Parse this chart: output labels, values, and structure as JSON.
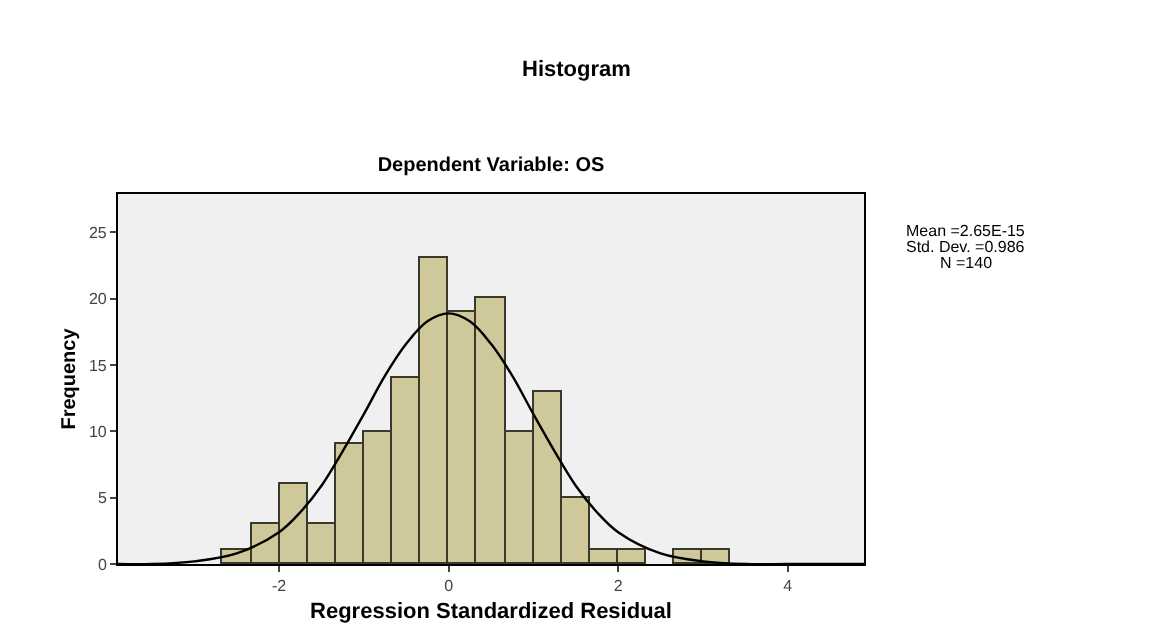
{
  "chart_data": {
    "type": "histogram",
    "title": "Histogram",
    "subtitle": "Dependent Variable: OS",
    "xlabel": "Regression Standardized Residual",
    "ylabel": "Frequency",
    "bins": [
      -2.67,
      -2.33,
      -2,
      -1.67,
      -1.33,
      -1,
      -0.67,
      -0.33,
      0,
      0.33,
      0.67,
      1,
      1.33,
      1.67,
      2,
      2.33,
      2.67,
      3,
      3.33
    ],
    "values": [
      1,
      3,
      6,
      3,
      9,
      10,
      14,
      23,
      19,
      20,
      10,
      13,
      5,
      1,
      1,
      0,
      1,
      1
    ],
    "color": "#cfc89a",
    "series": [
      {
        "type": "line",
        "color": "#000000",
        "x": [
          -3.9,
          -3.5,
          -3,
          -2.5,
          -2,
          -1.75,
          -1.5,
          -1.25,
          -1,
          -0.75,
          -0.5,
          -0.25,
          0,
          0.25,
          0.5,
          0.75,
          1,
          1.25,
          1.5,
          1.75,
          2,
          2.5,
          3,
          3.5,
          4,
          4.5,
          4.9
        ],
        "values": [
          0,
          0,
          0.2,
          0.8,
          2.4,
          3.9,
          5.9,
          8.5,
          11.3,
          14.2,
          16.6,
          18.3,
          18.9,
          18.3,
          16.6,
          14.2,
          11.3,
          8.5,
          5.9,
          3.9,
          2.4,
          0.8,
          0.2,
          0,
          0,
          0,
          0
        ]
      }
    ],
    "xlim": [
      -3.9,
      4.9
    ],
    "ylim": [
      0,
      27.9
    ],
    "xticks": [
      -2,
      0,
      2,
      4
    ],
    "yticks": [
      0,
      5,
      10,
      15,
      20,
      25
    ],
    "grid": false,
    "annotations": [
      "Mean =2.65E-15",
      "Std. Dev. =0.986",
      "N =140"
    ]
  }
}
